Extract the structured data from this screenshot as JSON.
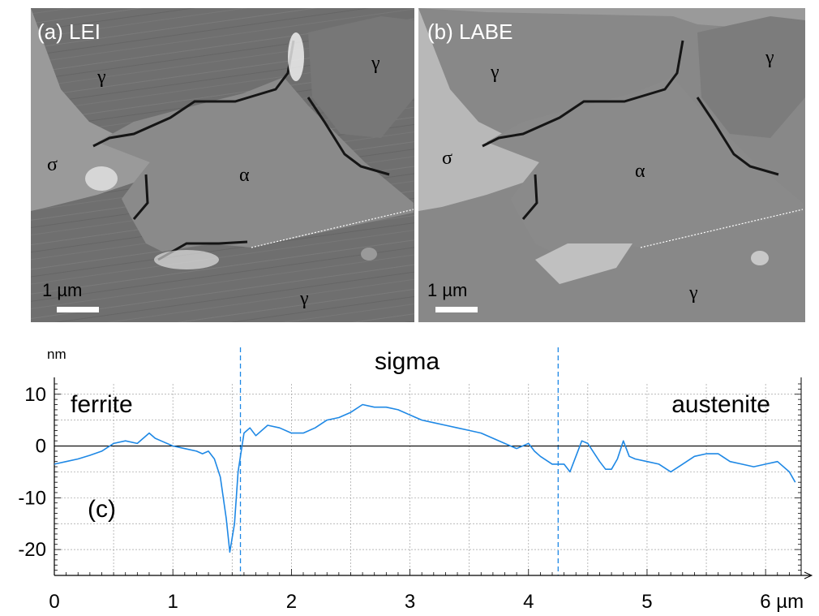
{
  "panels": [
    {
      "id": "a",
      "label": "(a) LEI",
      "scale_bar": "1 µm",
      "phases": [
        {
          "symbol": "γ",
          "name": "gamma-top-left"
        },
        {
          "symbol": "γ",
          "name": "gamma-top-right"
        },
        {
          "symbol": "σ",
          "name": "sigma"
        },
        {
          "symbol": "α",
          "name": "alpha"
        },
        {
          "symbol": "γ",
          "name": "gamma-bottom"
        }
      ]
    },
    {
      "id": "b",
      "label": "(b) LABE",
      "scale_bar": "1 µm",
      "phases": [
        {
          "symbol": "γ",
          "name": "gamma-top-left"
        },
        {
          "symbol": "γ",
          "name": "gamma-top-right"
        },
        {
          "symbol": "σ",
          "name": "sigma"
        },
        {
          "symbol": "α",
          "name": "alpha"
        },
        {
          "symbol": "γ",
          "name": "gamma-bottom"
        }
      ]
    }
  ],
  "chart_data": {
    "type": "line",
    "panel_label": "(c)",
    "y_unit": "nm",
    "x_unit": "µm",
    "xlim": [
      0,
      6.3
    ],
    "ylim": [
      -25,
      12
    ],
    "x_ticks": [
      0,
      1,
      2,
      3,
      4,
      5,
      6
    ],
    "x_tick_labels": [
      "0",
      "1",
      "2",
      "3",
      "4",
      "5",
      "6 µm"
    ],
    "y_ticks": [
      10,
      0,
      -10,
      -20
    ],
    "y_tick_labels": [
      "10",
      "0",
      "-10",
      "-20"
    ],
    "grid": true,
    "zero_line": true,
    "phase_boundaries": [
      1.57,
      4.25
    ],
    "region_labels": [
      "ferrite",
      "sigma",
      "austenite"
    ],
    "color": "#1e88e5",
    "series": [
      {
        "x": [
          0,
          0.1,
          0.2,
          0.3,
          0.4,
          0.5,
          0.6,
          0.7,
          0.8,
          0.85,
          0.9,
          1.0,
          1.1,
          1.2,
          1.25,
          1.3,
          1.35,
          1.4,
          1.45,
          1.48,
          1.52,
          1.55,
          1.6,
          1.65,
          1.7,
          1.8,
          1.9,
          2.0,
          2.1,
          2.2,
          2.3,
          2.4,
          2.5,
          2.6,
          2.7,
          2.8,
          2.9,
          3.0,
          3.1,
          3.2,
          3.3,
          3.4,
          3.5,
          3.6,
          3.7,
          3.8,
          3.9,
          4.0,
          4.05,
          4.1,
          4.2,
          4.3,
          4.35,
          4.4,
          4.45,
          4.5,
          4.6,
          4.65,
          4.7,
          4.75,
          4.8,
          4.85,
          4.9,
          5.0,
          5.1,
          5.2,
          5.3,
          5.4,
          5.5,
          5.6,
          5.7,
          5.8,
          5.9,
          6.0,
          6.1,
          6.2,
          6.25
        ],
        "y": [
          -3.5,
          -3,
          -2.5,
          -1.8,
          -1,
          0.5,
          1,
          0.5,
          2.5,
          1.5,
          1,
          0,
          -0.5,
          -1,
          -1.5,
          -1,
          -2.5,
          -6,
          -14,
          -20.5,
          -15,
          -5,
          2.5,
          3.5,
          2,
          4,
          3.5,
          2.5,
          2.5,
          3.5,
          5,
          5.5,
          6.5,
          8,
          7.5,
          7.5,
          7,
          6,
          5,
          4.5,
          4,
          3.5,
          3,
          2.5,
          1.5,
          0.5,
          -0.5,
          0.5,
          -1,
          -2,
          -3.5,
          -3.5,
          -5,
          -2,
          1,
          0.5,
          -3,
          -4.5,
          -4.5,
          -2.5,
          1,
          -2,
          -2.5,
          -3,
          -3.5,
          -5,
          -3.5,
          -2,
          -1.5,
          -1.5,
          -3,
          -3.5,
          -4,
          -3.5,
          -3,
          -5,
          -7
        ]
      }
    ]
  }
}
